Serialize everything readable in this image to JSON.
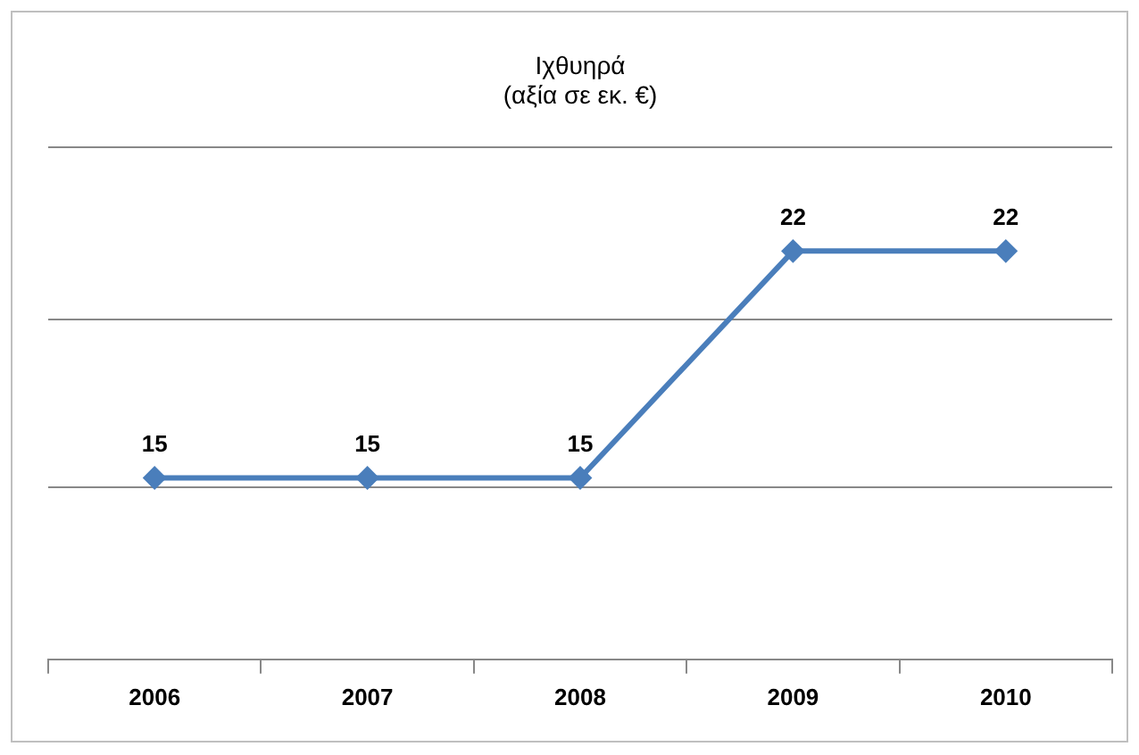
{
  "chart_data": {
    "type": "line",
    "title": "Ιχθυηρά\n(αξία σε εκ. €)",
    "categories": [
      "2006",
      "2007",
      "2008",
      "2009",
      "2010"
    ],
    "series": [
      {
        "color": "#4a7ebb",
        "values": [
          15,
          15,
          15,
          22,
          22
        ]
      }
    ],
    "ylim": [
      9.4,
      25.2
    ],
    "yticks": [
      {
        "value": 9.4,
        "label": null
      },
      {
        "value": 14.7,
        "label": null
      },
      {
        "value": 19.9,
        "label": null
      },
      {
        "value": 25.2,
        "label": null
      }
    ],
    "tick_labels": "x",
    "grid": "y",
    "legend": false,
    "marker": "diamond",
    "line_style": "solid",
    "data_labels": true
  }
}
